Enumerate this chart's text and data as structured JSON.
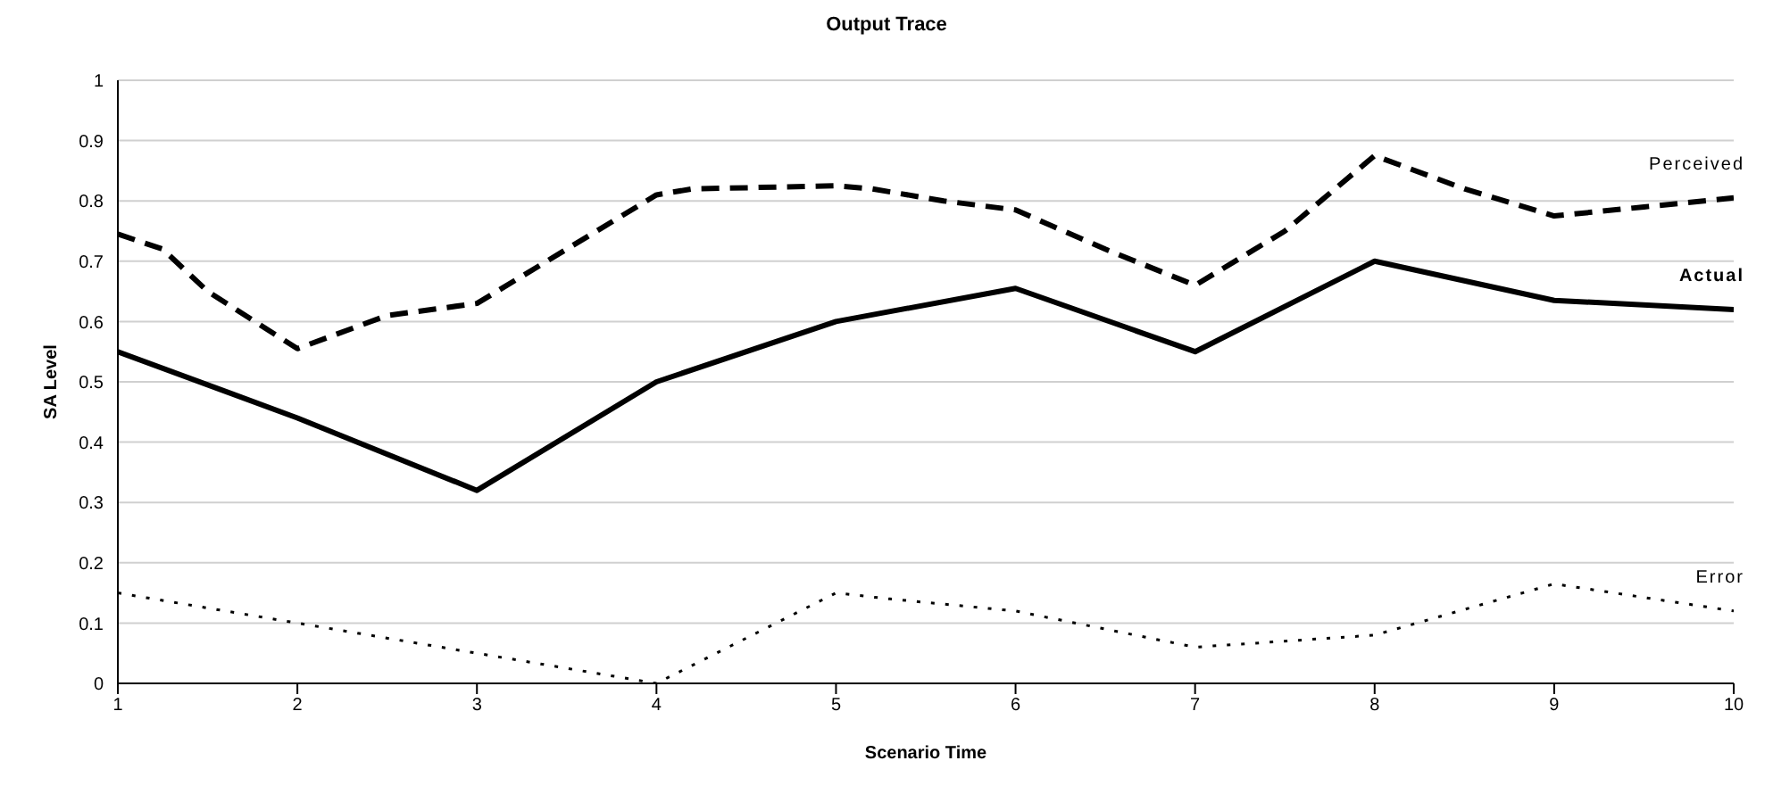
{
  "chart_data": {
    "type": "line",
    "title": "Output Trace",
    "xlabel": "Scenario  Time",
    "ylabel": "SA Level",
    "xlim": [
      1,
      10
    ],
    "xticks": [
      1,
      2,
      3,
      4,
      5,
      6,
      7,
      8,
      9,
      10
    ],
    "ylim": [
      0,
      1
    ],
    "yticks": [
      0,
      0.1,
      0.2,
      0.3,
      0.4,
      0.5,
      0.6,
      0.7,
      0.8,
      0.9,
      1
    ],
    "grid": "y",
    "marker": "none",
    "series": [
      {
        "name": "Perceived",
        "color": "#000000",
        "line_style": "dashed",
        "x": [
          1,
          1.25,
          1.5,
          2,
          2.5,
          3,
          3.5,
          4,
          4.2,
          5,
          5.2,
          5.6,
          6,
          6.5,
          7,
          7.5,
          8,
          8.5,
          9,
          9.5,
          10
        ],
        "values": [
          0.745,
          0.72,
          0.65,
          0.555,
          0.61,
          0.63,
          0.72,
          0.81,
          0.82,
          0.825,
          0.82,
          0.8,
          0.785,
          0.72,
          0.66,
          0.75,
          0.875,
          0.82,
          0.775,
          0.79,
          0.805
        ]
      },
      {
        "name": "Actual",
        "color": "#000000",
        "line_style": "solid",
        "x": [
          1,
          2,
          3,
          4,
          5,
          6,
          7,
          8,
          9,
          10
        ],
        "values": [
          0.55,
          0.44,
          0.32,
          0.5,
          0.6,
          0.655,
          0.55,
          0.7,
          0.635,
          0.62
        ]
      },
      {
        "name": "Error",
        "color": "#000000",
        "line_style": "dotted",
        "x": [
          1,
          2,
          3,
          4,
          5,
          5.3,
          6,
          7,
          8,
          9,
          10
        ],
        "values": [
          0.15,
          0.1,
          0.05,
          0,
          0.15,
          0.14,
          0.12,
          0.06,
          0.08,
          0.165,
          0.12
        ]
      }
    ]
  }
}
